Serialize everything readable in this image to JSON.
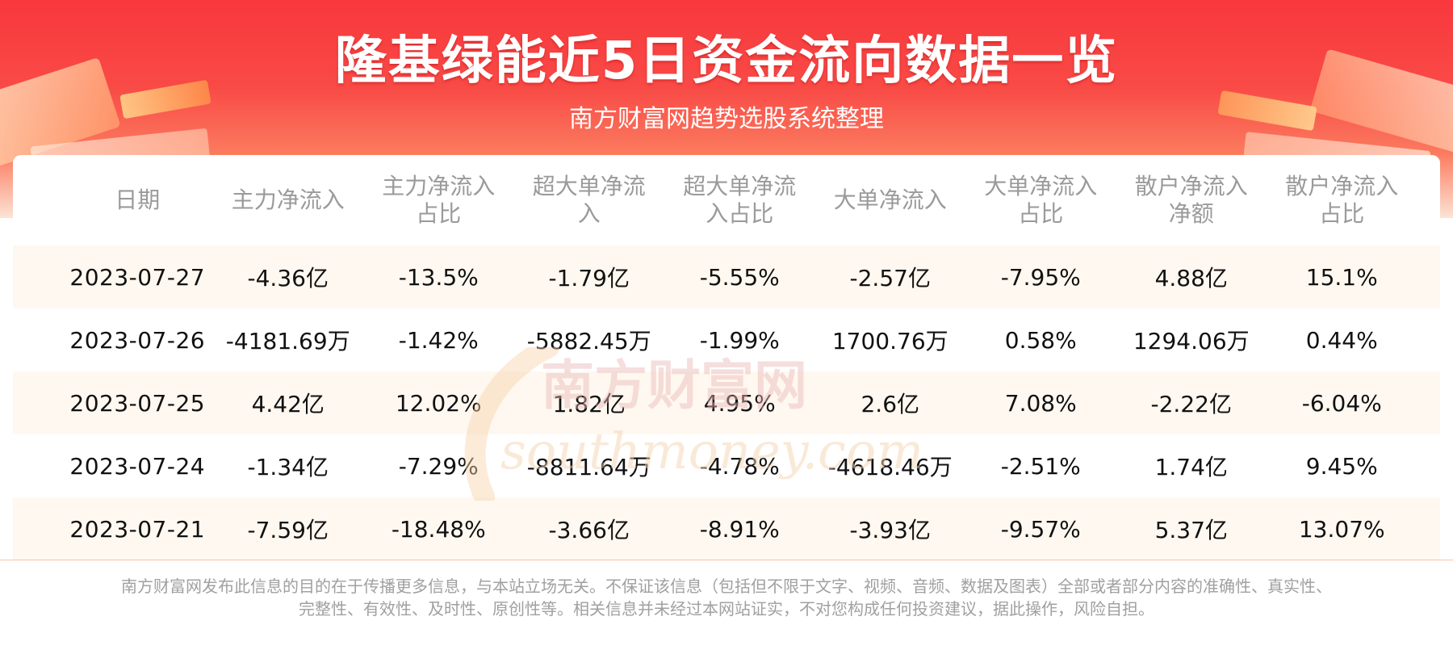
{
  "header": {
    "title": "隆基绿能近5日资金流向数据一览",
    "subtitle": "南方财富网趋势选股系统整理"
  },
  "watermark": {
    "cn": "南方财富网",
    "en": "southmoney.com"
  },
  "table": {
    "columns": [
      "日期",
      "主力净流入",
      "主力净流入\n占比",
      "超大单净流\n入",
      "超大单净流\n入占比",
      "大单净流入",
      "大单净流入\n占比",
      "散户净流入\n净额",
      "散户净流入\n占比"
    ],
    "rows": [
      [
        "2023-07-27",
        "-4.36亿",
        "-13.5%",
        "-1.79亿",
        "-5.55%",
        "-2.57亿",
        "-7.95%",
        "4.88亿",
        "15.1%"
      ],
      [
        "2023-07-26",
        "-4181.69万",
        "-1.42%",
        "-5882.45万",
        "-1.99%",
        "1700.76万",
        "0.58%",
        "1294.06万",
        "0.44%"
      ],
      [
        "2023-07-25",
        "4.42亿",
        "12.02%",
        "1.82亿",
        "4.95%",
        "2.6亿",
        "7.08%",
        "-2.22亿",
        "-6.04%"
      ],
      [
        "2023-07-24",
        "-1.34亿",
        "-7.29%",
        "-8811.64万",
        "-4.78%",
        "-4618.46万",
        "-2.51%",
        "1.74亿",
        "9.45%"
      ],
      [
        "2023-07-21",
        "-7.59亿",
        "-18.48%",
        "-3.66亿",
        "-8.91%",
        "-3.93亿",
        "-9.57%",
        "5.37亿",
        "13.07%"
      ]
    ]
  },
  "footer": {
    "line1": "南方财富网发布此信息的目的在于传播更多信息，与本站立场无关。不保证该信息（包括但不限于文字、视频、音频、数据及图表）全部或者部分内容的准确性、真实性、",
    "line2": "完整性、有效性、及时性、原创性等。相关信息并未经过本网站证实，不对您构成任何投资建议，据此操作，风险自担。"
  },
  "colors": {
    "banner_top": "#f8383d",
    "header_text": "#9a9a9a",
    "row_alt": "#fff8f0",
    "body_text": "#111111",
    "footer_text": "#a0a0a0"
  }
}
